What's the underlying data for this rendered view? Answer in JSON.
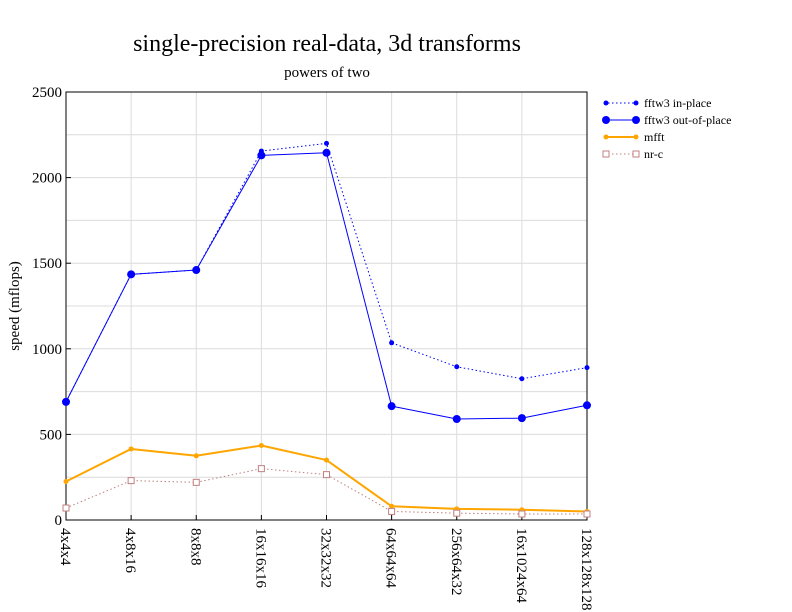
{
  "chart_data": {
    "type": "line",
    "title": "single-precision real-data, 3d transforms",
    "subtitle": "powers of two",
    "xlabel": "",
    "ylabel": "speed (mflops)",
    "ylim": [
      0,
      2500
    ],
    "yticks": [
      0,
      500,
      1000,
      1500,
      2000,
      2500
    ],
    "grid": true,
    "legend_position": "top-right",
    "categories": [
      "4x4x4",
      "4x8x16",
      "8x8x8",
      "16x16x16",
      "32x32x32",
      "64x64x64",
      "256x64x32",
      "16x1024x64",
      "128x128x128"
    ],
    "series": [
      {
        "name": "fftw3 in-place",
        "color": "#0000ff",
        "style": "dotted",
        "marker": "small-dot",
        "values": [
          690,
          1435,
          1460,
          2155,
          2200,
          1035,
          895,
          825,
          890
        ]
      },
      {
        "name": "fftw3 out-of-place",
        "color": "#0000ff",
        "style": "solid",
        "marker": "dot",
        "values": [
          690,
          1435,
          1460,
          2130,
          2145,
          665,
          590,
          595,
          670
        ]
      },
      {
        "name": "mfft",
        "color": "#ffa500",
        "style": "solid-thick",
        "marker": "small-dot",
        "values": [
          225,
          415,
          375,
          435,
          350,
          80,
          65,
          60,
          50
        ]
      },
      {
        "name": "nr-c",
        "color": "#c08080",
        "style": "dotted",
        "marker": "square",
        "values": [
          70,
          230,
          220,
          300,
          265,
          50,
          40,
          35,
          35
        ]
      }
    ]
  }
}
